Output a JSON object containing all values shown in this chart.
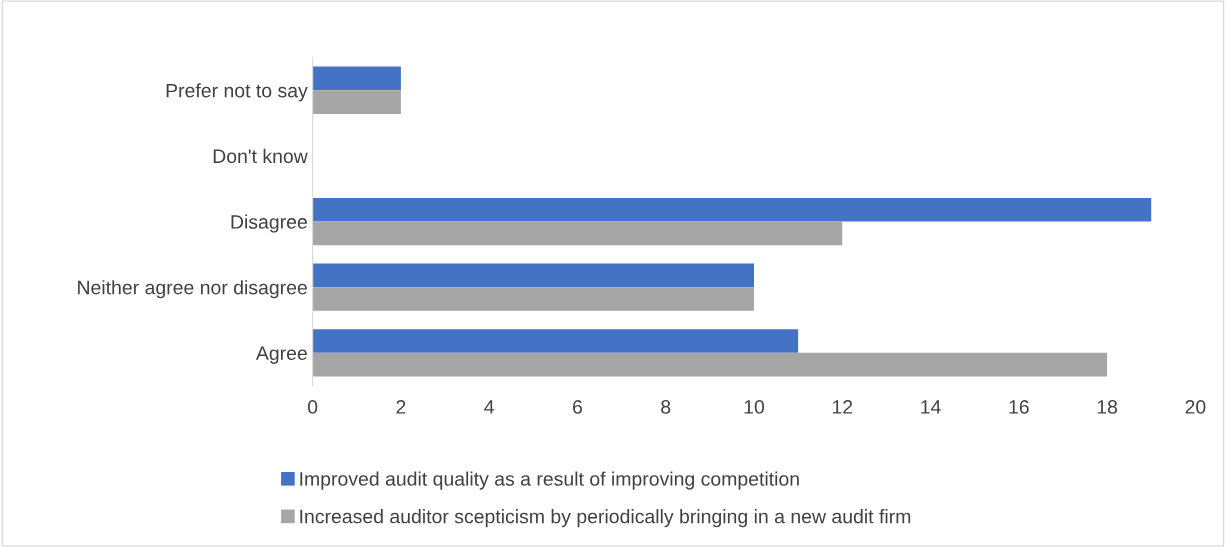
{
  "chart_data": {
    "type": "bar",
    "orientation": "horizontal",
    "categories": [
      "Prefer not to say",
      "Don't know",
      "Disagree",
      "Neither agree nor disagree",
      "Agree"
    ],
    "series": [
      {
        "name": "Improved audit quality as a result of improving competition",
        "color": "#4472c4",
        "values": [
          2,
          0,
          19,
          10,
          11
        ]
      },
      {
        "name": "Increased auditor scepticism by periodically bringing in a new audit firm",
        "color": "#a5a5a5",
        "values": [
          2,
          0,
          12,
          10,
          18
        ]
      }
    ],
    "xlim": [
      0,
      20
    ],
    "xticks": [
      0,
      2,
      4,
      6,
      8,
      10,
      12,
      14,
      16,
      18,
      20
    ],
    "grid": false,
    "legend": "bottom"
  }
}
